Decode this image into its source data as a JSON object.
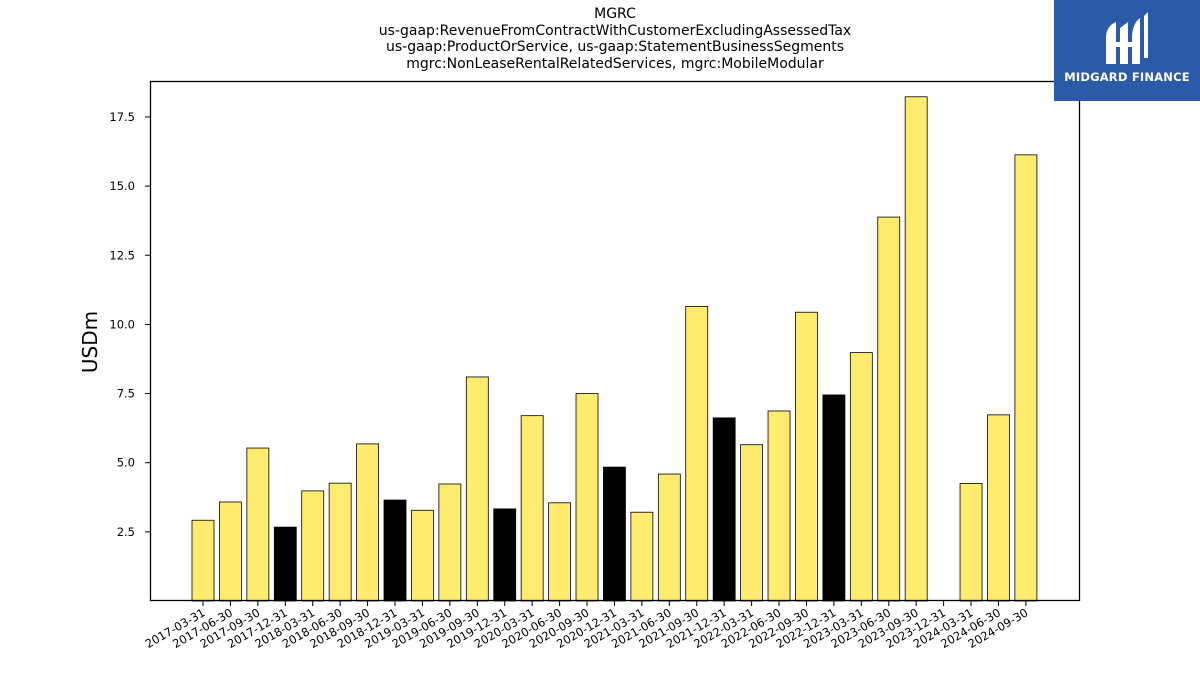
{
  "chart_data": {
    "type": "bar",
    "title": "MGRC",
    "subtitle_lines": [
      "us-gaap:RevenueFromContractWithCustomerExcludingAssessedTax",
      "us-gaap:ProductOrService, us-gaap:StatementBusinessSegments",
      "mgrc:NonLeaseRentalRelatedServices, mgrc:MobileModular"
    ],
    "ylabel": "USDm",
    "xlabel": "",
    "ylim": [
      0,
      18.8
    ],
    "yticks": [
      2.5,
      5.0,
      7.5,
      10.0,
      12.5,
      15.0,
      17.5
    ],
    "ytick_labels": [
      "2.5",
      "5.0",
      "7.5",
      "10.0",
      "12.5",
      "15.0",
      "17.5"
    ],
    "categories": [
      "2017-03-31",
      "2017-06-30",
      "2017-09-30",
      "2017-12-31",
      "2018-03-31",
      "2018-06-30",
      "2018-09-30",
      "2018-12-31",
      "2019-03-31",
      "2019-06-30",
      "2019-09-30",
      "2019-12-31",
      "2020-03-31",
      "2020-06-30",
      "2020-09-30",
      "2020-12-31",
      "2021-03-31",
      "2021-06-30",
      "2021-09-30",
      "2021-12-31",
      "2022-03-31",
      "2022-06-30",
      "2022-09-30",
      "2022-12-31",
      "2023-03-31",
      "2023-06-30",
      "2023-09-30",
      "2023-12-31",
      "2024-03-31",
      "2024-06-30",
      "2024-09-30"
    ],
    "values": [
      2.92,
      3.58,
      5.53,
      2.67,
      3.98,
      4.26,
      5.68,
      3.65,
      3.28,
      4.23,
      8.1,
      3.33,
      6.7,
      3.55,
      7.5,
      4.84,
      3.21,
      4.59,
      10.65,
      6.62,
      5.65,
      6.87,
      10.44,
      7.45,
      8.98,
      13.88,
      18.23,
      null,
      4.25,
      6.73,
      16.13
    ],
    "bar_colors": [
      "#ffec6e",
      "#ffec6e",
      "#ffec6e",
      "#000000",
      "#ffec6e",
      "#ffec6e",
      "#ffec6e",
      "#000000",
      "#ffec6e",
      "#ffec6e",
      "#ffec6e",
      "#000000",
      "#ffec6e",
      "#ffec6e",
      "#ffec6e",
      "#000000",
      "#ffec6e",
      "#ffec6e",
      "#ffec6e",
      "#000000",
      "#ffec6e",
      "#ffec6e",
      "#ffec6e",
      "#000000",
      "#ffec6e",
      "#ffec6e",
      "#ffec6e",
      "#000000",
      "#ffec6e",
      "#ffec6e",
      "#ffec6e"
    ],
    "colors": {
      "quarter_bar": "#ffec6e",
      "year_end_bar": "#000000",
      "edge": "#000000"
    },
    "grid": false,
    "legend": "none"
  },
  "logo": {
    "text": "MIDGARD FINANCE",
    "background": "#2b5ba8"
  }
}
